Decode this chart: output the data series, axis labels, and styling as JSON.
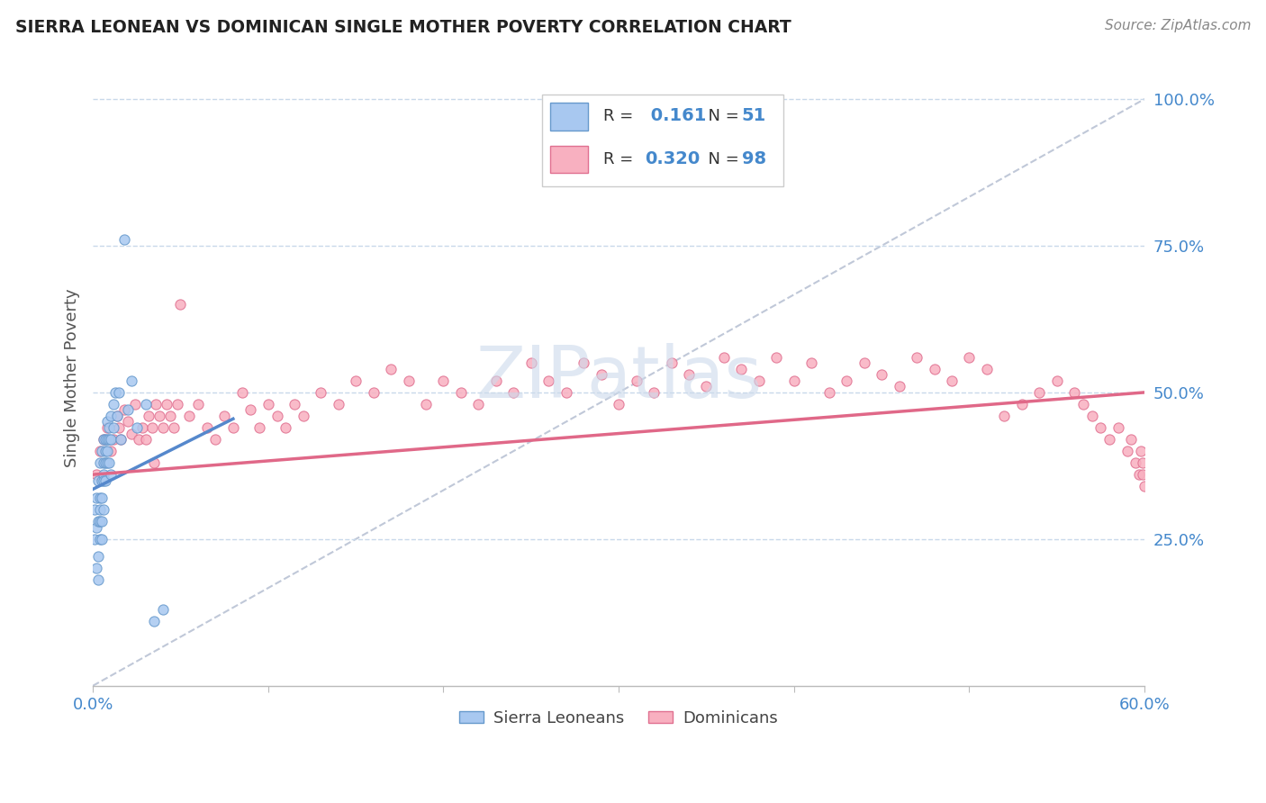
{
  "title": "SIERRA LEONEAN VS DOMINICAN SINGLE MOTHER POVERTY CORRELATION CHART",
  "source": "Source: ZipAtlas.com",
  "ylabel": "Single Mother Poverty",
  "xlim": [
    0.0,
    0.6
  ],
  "ylim": [
    0.0,
    1.05
  ],
  "sierra_R": 0.161,
  "sierra_N": 51,
  "dominican_R": 0.32,
  "dominican_N": 98,
  "sierra_fill": "#a8c8f0",
  "sierra_edge": "#6699cc",
  "dominican_fill": "#f8b0c0",
  "dominican_edge": "#e07090",
  "sierra_trend_color": "#5588cc",
  "dominican_trend_color": "#e06888",
  "diag_color": "#c0c8d8",
  "watermark": "ZIPatlas",
  "watermark_color": "#ccdaeb",
  "background": "#ffffff",
  "grid_color": "#c8d8ea",
  "axis_label_color": "#4488cc",
  "legend_num_color": "#4488cc",
  "sierra_x": [
    0.001,
    0.001,
    0.002,
    0.002,
    0.002,
    0.003,
    0.003,
    0.003,
    0.003,
    0.004,
    0.004,
    0.004,
    0.004,
    0.004,
    0.005,
    0.005,
    0.005,
    0.005,
    0.005,
    0.006,
    0.006,
    0.006,
    0.006,
    0.006,
    0.007,
    0.007,
    0.007,
    0.007,
    0.008,
    0.008,
    0.008,
    0.008,
    0.009,
    0.009,
    0.009,
    0.01,
    0.01,
    0.01,
    0.012,
    0.012,
    0.013,
    0.014,
    0.015,
    0.016,
    0.018,
    0.02,
    0.022,
    0.025,
    0.03,
    0.035,
    0.04
  ],
  "sierra_y": [
    0.3,
    0.25,
    0.27,
    0.32,
    0.2,
    0.28,
    0.35,
    0.22,
    0.18,
    0.32,
    0.28,
    0.38,
    0.25,
    0.3,
    0.35,
    0.4,
    0.28,
    0.32,
    0.25,
    0.36,
    0.38,
    0.42,
    0.3,
    0.35,
    0.4,
    0.42,
    0.38,
    0.35,
    0.42,
    0.45,
    0.4,
    0.38,
    0.44,
    0.42,
    0.38,
    0.46,
    0.42,
    0.36,
    0.48,
    0.44,
    0.5,
    0.46,
    0.5,
    0.42,
    0.76,
    0.47,
    0.52,
    0.44,
    0.48,
    0.11,
    0.13
  ],
  "dominican_x": [
    0.002,
    0.004,
    0.006,
    0.008,
    0.01,
    0.012,
    0.014,
    0.015,
    0.016,
    0.018,
    0.02,
    0.022,
    0.024,
    0.026,
    0.028,
    0.03,
    0.032,
    0.034,
    0.035,
    0.036,
    0.038,
    0.04,
    0.042,
    0.044,
    0.046,
    0.048,
    0.05,
    0.055,
    0.06,
    0.065,
    0.07,
    0.075,
    0.08,
    0.085,
    0.09,
    0.095,
    0.1,
    0.105,
    0.11,
    0.115,
    0.12,
    0.13,
    0.14,
    0.15,
    0.16,
    0.17,
    0.18,
    0.19,
    0.2,
    0.21,
    0.22,
    0.23,
    0.24,
    0.25,
    0.26,
    0.27,
    0.28,
    0.29,
    0.3,
    0.31,
    0.32,
    0.33,
    0.34,
    0.35,
    0.36,
    0.37,
    0.38,
    0.39,
    0.4,
    0.41,
    0.42,
    0.43,
    0.44,
    0.45,
    0.46,
    0.47,
    0.48,
    0.49,
    0.5,
    0.51,
    0.52,
    0.53,
    0.54,
    0.55,
    0.56,
    0.565,
    0.57,
    0.575,
    0.58,
    0.585,
    0.59,
    0.592,
    0.595,
    0.597,
    0.598,
    0.599,
    0.599,
    0.6
  ],
  "dominican_y": [
    0.36,
    0.4,
    0.42,
    0.44,
    0.4,
    0.42,
    0.46,
    0.44,
    0.42,
    0.47,
    0.45,
    0.43,
    0.48,
    0.42,
    0.44,
    0.42,
    0.46,
    0.44,
    0.38,
    0.48,
    0.46,
    0.44,
    0.48,
    0.46,
    0.44,
    0.48,
    0.65,
    0.46,
    0.48,
    0.44,
    0.42,
    0.46,
    0.44,
    0.5,
    0.47,
    0.44,
    0.48,
    0.46,
    0.44,
    0.48,
    0.46,
    0.5,
    0.48,
    0.52,
    0.5,
    0.54,
    0.52,
    0.48,
    0.52,
    0.5,
    0.48,
    0.52,
    0.5,
    0.55,
    0.52,
    0.5,
    0.55,
    0.53,
    0.48,
    0.52,
    0.5,
    0.55,
    0.53,
    0.51,
    0.56,
    0.54,
    0.52,
    0.56,
    0.52,
    0.55,
    0.5,
    0.52,
    0.55,
    0.53,
    0.51,
    0.56,
    0.54,
    0.52,
    0.56,
    0.54,
    0.46,
    0.48,
    0.5,
    0.52,
    0.5,
    0.48,
    0.46,
    0.44,
    0.42,
    0.44,
    0.4,
    0.42,
    0.38,
    0.36,
    0.4,
    0.38,
    0.36,
    0.34
  ],
  "sierra_trend_x0": 0.0,
  "sierra_trend_y0": 0.335,
  "sierra_trend_x1": 0.08,
  "sierra_trend_y1": 0.455,
  "dominican_trend_x0": 0.0,
  "dominican_trend_y0": 0.36,
  "dominican_trend_x1": 0.6,
  "dominican_trend_y1": 0.5
}
